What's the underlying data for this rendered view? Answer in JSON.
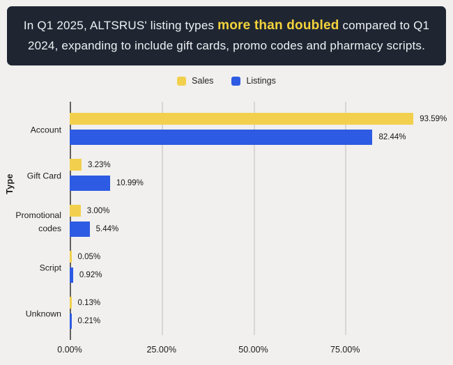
{
  "banner": {
    "line1": {
      "before": "In Q1 2025, ALTSRUS' listing types ",
      "highlight": "more than doubled",
      "after": " compared to Q1"
    },
    "line2": "2024, expanding to include gift cards, promo codes and pharmacy scripts.",
    "bg_color": "#1f2632",
    "text_color": "#eef1f4",
    "highlight_color": "#f5d33c"
  },
  "chart_data": {
    "type": "bar",
    "orientation": "horizontal",
    "title": "",
    "xlabel": "",
    "ylabel": "Type",
    "value_suffix": "%",
    "categories": [
      "Account",
      "Gift Card",
      "Promotional codes",
      "Script",
      "Unknown"
    ],
    "series": [
      {
        "name": "Sales",
        "color": "#f2d04e",
        "values": [
          93.59,
          3.23,
          3.0,
          0.05,
          0.13
        ]
      },
      {
        "name": "Listings",
        "color": "#2e5be3",
        "values": [
          82.44,
          10.99,
          5.44,
          0.92,
          0.21
        ]
      }
    ],
    "x_ticks": [
      {
        "value": 0,
        "label": "0.00%"
      },
      {
        "value": 25,
        "label": "25.00%"
      },
      {
        "value": 50,
        "label": "50.00%"
      },
      {
        "value": 75,
        "label": "75.00%"
      }
    ],
    "xlim": [
      0,
      104
    ],
    "grid": true,
    "legend_position": "top-center",
    "grid_color": "#d7d6d3",
    "axis_color": "#616161",
    "page_bg": "#f1f0ee"
  }
}
